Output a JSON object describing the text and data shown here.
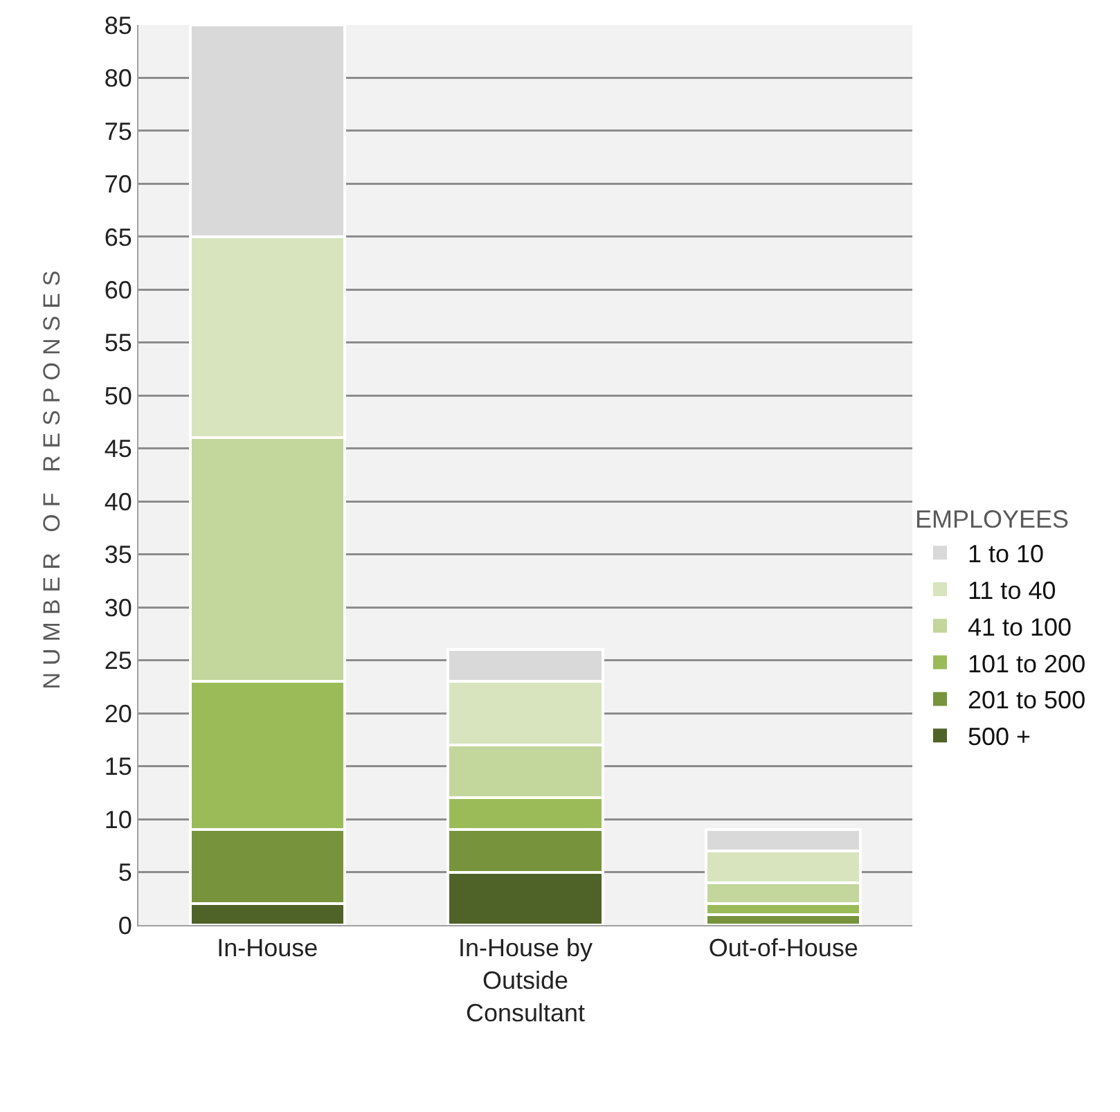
{
  "chart_data": {
    "type": "bar",
    "stacked": true,
    "ylabel": "NUMBER OF RESPONSES",
    "legend_title": "EMPLOYEES",
    "legend": "right",
    "grid": "y",
    "categories": [
      "In-House",
      "In-House by Outside Consultant",
      "Out-of-House"
    ],
    "ylim": [
      0,
      85
    ],
    "yticks": [
      0,
      5,
      10,
      15,
      20,
      25,
      30,
      35,
      40,
      45,
      50,
      55,
      60,
      65,
      70,
      75,
      80,
      85
    ],
    "series": [
      {
        "name": "500 +",
        "color": "#4f6228",
        "values": [
          2,
          5,
          0
        ]
      },
      {
        "name": "201 to 500",
        "color": "#77933c",
        "values": [
          7,
          4,
          1
        ]
      },
      {
        "name": "101 to 200",
        "color": "#9bbb59",
        "values": [
          14,
          3,
          1
        ]
      },
      {
        "name": "41 to 100",
        "color": "#c3d69b",
        "values": [
          23,
          5,
          2
        ]
      },
      {
        "name": "11 to 40",
        "color": "#d7e4bd",
        "values": [
          19,
          6,
          3
        ]
      },
      {
        "name": "1 to 10",
        "color": "#d9d9d9",
        "values": [
          20,
          3,
          2
        ]
      }
    ]
  }
}
